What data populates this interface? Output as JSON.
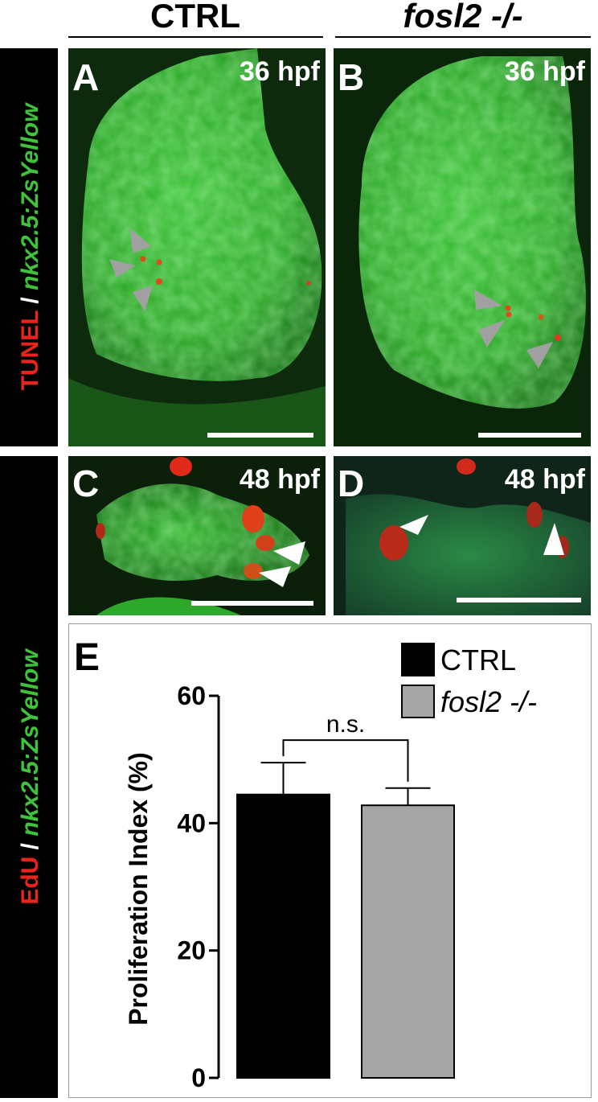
{
  "header": {
    "columns": [
      "CTRL",
      "fosl2 -/-"
    ]
  },
  "row_labels": [
    {
      "stain": "TUNEL",
      "separator": "/",
      "reporter": "nkx2.5:ZsYellow"
    },
    {
      "stain": "EdU",
      "separator": "/",
      "reporter": "nkx2.5:ZsYellow"
    }
  ],
  "panels": [
    {
      "letter": "A",
      "stage": "36 hpf"
    },
    {
      "letter": "B",
      "stage": "36 hpf"
    },
    {
      "letter": "C",
      "stage": "48 hpf"
    },
    {
      "letter": "D",
      "stage": "48 hpf"
    }
  ],
  "chart_data": {
    "type": "bar",
    "panel_letter": "E",
    "y_label": "Proliferation Index (%)",
    "annotation": "n.s.",
    "series": [
      {
        "name": "CTRL",
        "color": "#000000",
        "values": [
          44.5
        ],
        "errors": [
          5.0
        ]
      },
      {
        "name": "fosl2 -/-",
        "color": "#a6a6a6",
        "values": [
          42.8
        ],
        "errors": [
          2.7
        ]
      }
    ],
    "ylim": [
      0,
      60
    ],
    "yticks": [
      0,
      20,
      40,
      60
    ]
  }
}
